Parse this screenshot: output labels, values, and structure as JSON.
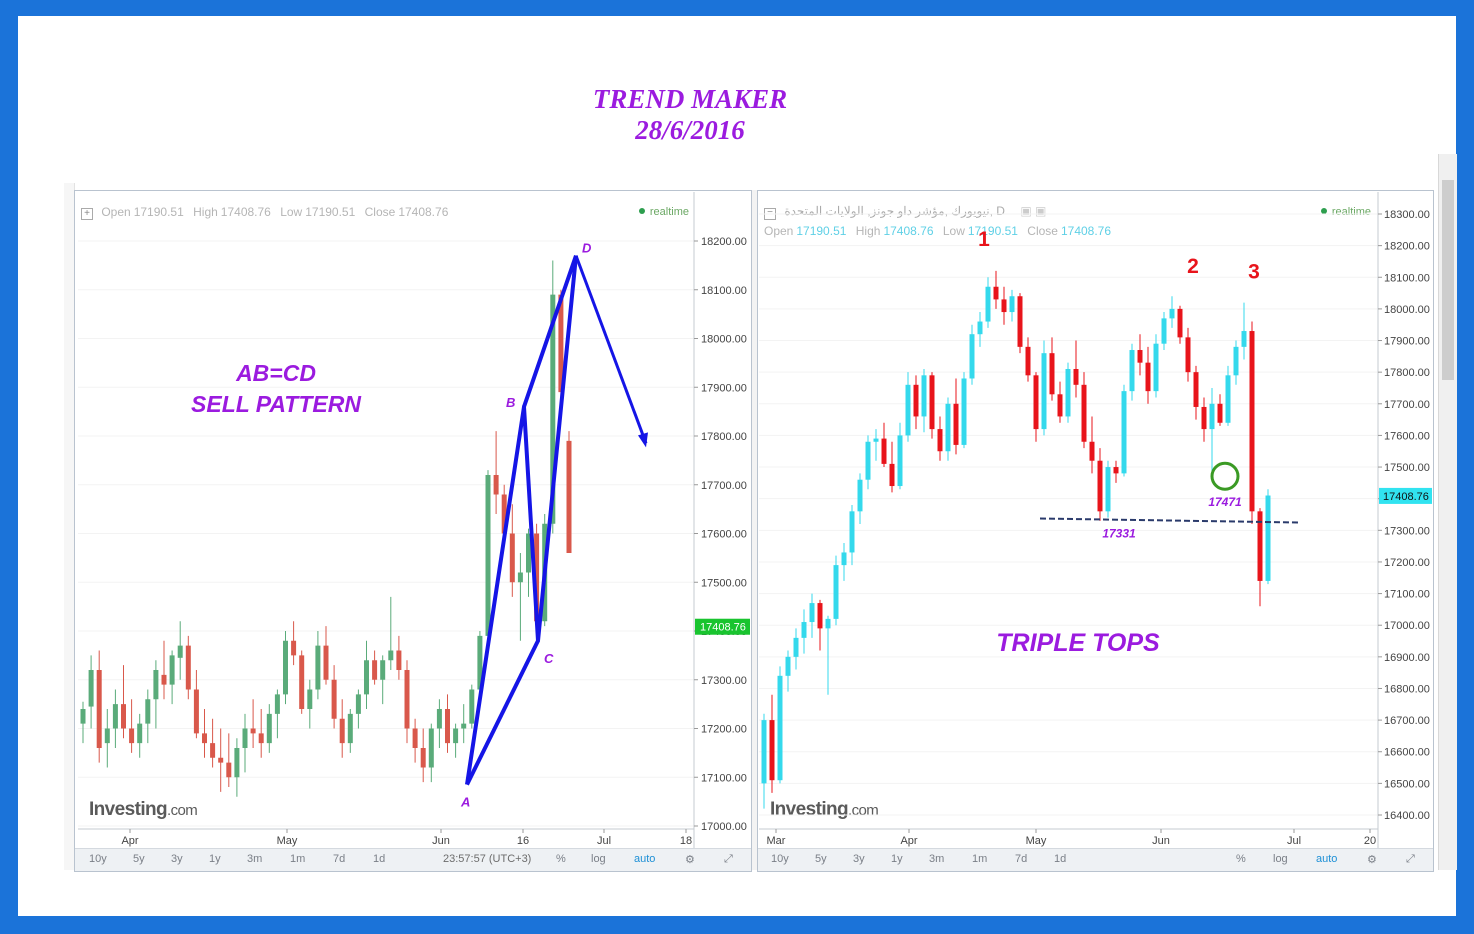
{
  "title_lines": [
    "TREND MAKER",
    "28/6/2016"
  ],
  "left_chart": {
    "header": {
      "open_label": "Open",
      "open": "17190.51",
      "high_label": "High",
      "high": "17408.76",
      "low_label": "Low",
      "low": "17190.51",
      "close_label": "Close",
      "close": "17408.76"
    },
    "realtime": "realtime",
    "price_tag": "17408.76",
    "annotation": [
      "AB=CD",
      "SELL PATTERN"
    ],
    "point_labels": {
      "A": "A",
      "B": "B",
      "C": "C",
      "D": "D"
    },
    "toolbar": [
      "10y",
      "5y",
      "3y",
      "1y",
      "3m",
      "1m",
      "7d",
      "1d"
    ],
    "time": "23:57:57 (UTC+3)",
    "toolbar_right": [
      "%",
      "log",
      "auto"
    ],
    "logo": "Investing",
    "logo_suffix": ".com"
  },
  "right_chart": {
    "header_title": "نيويورك ,مؤشر داو جونز, الولايات المتحدة, D",
    "header": {
      "open_label": "Open",
      "open": "17190.51",
      "high_label": "High",
      "high": "17408.76",
      "low_label": "Low",
      "low": "17190.51",
      "close_label": "Close",
      "close": "17408.76"
    },
    "realtime": "realtime",
    "price_tag": "17408.76",
    "annotation": "TRIPLE TOPS",
    "tops": [
      "1",
      "2",
      "3"
    ],
    "support_label": "17331",
    "circle_label": "17471",
    "toolbar": [
      "10y",
      "5y",
      "3y",
      "1y",
      "3m",
      "1m",
      "7d",
      "1d"
    ],
    "toolbar_right": [
      "%",
      "log",
      "auto"
    ],
    "logo": "Investing",
    "logo_suffix": ".com"
  },
  "chart_data": [
    {
      "type": "candlestick",
      "title": "",
      "ylim": [
        17000,
        18250
      ],
      "y_ticks": [
        18200,
        18100,
        18000,
        17900,
        17800,
        17700,
        17600,
        17500,
        17400,
        17300,
        17200,
        17100,
        17000
      ],
      "y_tick_labels": [
        "18200.00",
        "18100.00",
        "18000.00",
        "17900.00",
        "17800.00",
        "17700.00",
        "17600.00",
        "17500.00",
        "17400.00",
        "17300.00",
        "17200.00",
        "17100.00",
        "17000.00"
      ],
      "x_tick_labels": [
        "Apr",
        "May",
        "Jun",
        "16",
        "Jul",
        "18"
      ],
      "colors": {
        "up": "#5aab7a",
        "down": "#d9584b"
      },
      "pattern_points": {
        "A": 17085,
        "B": 17860,
        "C": 17380,
        "D": 18170
      },
      "projection_end": 17785,
      "bars": [
        [
          17210,
          17255,
          17170,
          17240
        ],
        [
          17245,
          17350,
          17200,
          17320
        ],
        [
          17320,
          17360,
          17130,
          17160
        ],
        [
          17170,
          17240,
          17120,
          17200
        ],
        [
          17200,
          17280,
          17160,
          17250
        ],
        [
          17250,
          17330,
          17180,
          17200
        ],
        [
          17200,
          17260,
          17150,
          17170
        ],
        [
          17170,
          17230,
          17140,
          17210
        ],
        [
          17210,
          17280,
          17170,
          17260
        ],
        [
          17260,
          17340,
          17200,
          17320
        ],
        [
          17310,
          17380,
          17260,
          17290
        ],
        [
          17290,
          17360,
          17250,
          17350
        ],
        [
          17345,
          17420,
          17300,
          17370
        ],
        [
          17370,
          17390,
          17260,
          17280
        ],
        [
          17280,
          17320,
          17180,
          17190
        ],
        [
          17190,
          17240,
          17140,
          17170
        ],
        [
          17170,
          17220,
          17120,
          17140
        ],
        [
          17140,
          17200,
          17070,
          17130
        ],
        [
          17130,
          17190,
          17080,
          17100
        ],
        [
          17100,
          17180,
          17060,
          17160
        ],
        [
          17160,
          17230,
          17110,
          17200
        ],
        [
          17200,
          17260,
          17160,
          17190
        ],
        [
          17190,
          17240,
          17140,
          17170
        ],
        [
          17170,
          17250,
          17150,
          17230
        ],
        [
          17230,
          17280,
          17180,
          17270
        ],
        [
          17270,
          17400,
          17250,
          17380
        ],
        [
          17380,
          17420,
          17330,
          17350
        ],
        [
          17350,
          17360,
          17230,
          17240
        ],
        [
          17240,
          17300,
          17200,
          17280
        ],
        [
          17280,
          17400,
          17260,
          17370
        ],
        [
          17370,
          17410,
          17290,
          17300
        ],
        [
          17300,
          17330,
          17200,
          17220
        ],
        [
          17220,
          17260,
          17140,
          17170
        ],
        [
          17170,
          17240,
          17150,
          17230
        ],
        [
          17230,
          17280,
          17200,
          17270
        ],
        [
          17270,
          17380,
          17240,
          17340
        ],
        [
          17340,
          17360,
          17290,
          17300
        ],
        [
          17300,
          17350,
          17250,
          17340
        ],
        [
          17340,
          17470,
          17320,
          17360
        ],
        [
          17360,
          17390,
          17300,
          17320
        ],
        [
          17320,
          17340,
          17170,
          17200
        ],
        [
          17200,
          17220,
          17130,
          17160
        ],
        [
          17160,
          17200,
          17090,
          17120
        ],
        [
          17120,
          17210,
          17090,
          17200
        ],
        [
          17200,
          17260,
          17160,
          17240
        ],
        [
          17240,
          17270,
          17150,
          17170
        ],
        [
          17170,
          17210,
          17140,
          17200
        ],
        [
          17200,
          17250,
          17170,
          17210
        ],
        [
          17210,
          17290,
          17200,
          17280
        ],
        [
          17280,
          17400,
          17270,
          17390
        ],
        [
          17390,
          17730,
          17380,
          17720
        ],
        [
          17720,
          17810,
          17640,
          17680
        ],
        [
          17680,
          17700,
          17590,
          17600
        ],
        [
          17600,
          17660,
          17470,
          17500
        ],
        [
          17500,
          17560,
          17380,
          17520
        ],
        [
          17520,
          17610,
          17470,
          17600
        ],
        [
          17600,
          17620,
          17400,
          17420
        ],
        [
          17420,
          17640,
          17410,
          17620
        ],
        [
          17620,
          18160,
          17600,
          18090
        ],
        [
          18090,
          18100,
          17860,
          17890
        ],
        [
          17790,
          17810,
          17560,
          17560
        ]
      ]
    },
    {
      "type": "candlestick",
      "title": "",
      "ylim": [
        16350,
        18350
      ],
      "y_ticks": [
        18300,
        18200,
        18100,
        18000,
        17900,
        17800,
        17700,
        17600,
        17500,
        17400,
        17300,
        17200,
        17100,
        17000,
        16900,
        16800,
        16700,
        16600,
        16500,
        16400
      ],
      "y_tick_labels": [
        "18300.00",
        "18200.00",
        "18100.00",
        "18000.00",
        "17900.00",
        "17800.00",
        "17700.00",
        "17600.00",
        "17500.00",
        "17400.00",
        "17300.00",
        "17200.00",
        "17100.00",
        "17000.00",
        "16900.00",
        "16800.00",
        "16700.00",
        "16600.00",
        "16500.00",
        "16400.00"
      ],
      "x_tick_labels": [
        "Mar",
        "Apr",
        "May",
        "Jun",
        "Jul",
        "20"
      ],
      "colors": {
        "up": "#34d9ec",
        "down": "#e8141b"
      },
      "support_level": 17331,
      "tops": [
        18120,
        18050,
        18020
      ],
      "bars": [
        [
          16500,
          16720,
          16420,
          16700
        ],
        [
          16700,
          16780,
          16470,
          16510
        ],
        [
          16510,
          16870,
          16500,
          16840
        ],
        [
          16840,
          16920,
          16790,
          16900
        ],
        [
          16900,
          16990,
          16860,
          16960
        ],
        [
          16960,
          17050,
          16910,
          17010
        ],
        [
          17010,
          17100,
          16960,
          17070
        ],
        [
          17070,
          17080,
          16920,
          16990
        ],
        [
          16990,
          17030,
          16780,
          17020
        ],
        [
          17020,
          17220,
          17000,
          17190
        ],
        [
          17190,
          17260,
          17140,
          17230
        ],
        [
          17230,
          17380,
          17190,
          17360
        ],
        [
          17360,
          17480,
          17320,
          17460
        ],
        [
          17460,
          17600,
          17430,
          17580
        ],
        [
          17580,
          17620,
          17520,
          17590
        ],
        [
          17590,
          17640,
          17500,
          17510
        ],
        [
          17510,
          17580,
          17420,
          17440
        ],
        [
          17440,
          17640,
          17430,
          17600
        ],
        [
          17600,
          17800,
          17580,
          17760
        ],
        [
          17760,
          17790,
          17620,
          17660
        ],
        [
          17660,
          17810,
          17610,
          17790
        ],
        [
          17790,
          17800,
          17590,
          17620
        ],
        [
          17620,
          17660,
          17520,
          17550
        ],
        [
          17550,
          17720,
          17520,
          17700
        ],
        [
          17700,
          17780,
          17540,
          17570
        ],
        [
          17570,
          17800,
          17560,
          17780
        ],
        [
          17780,
          17950,
          17760,
          17920
        ],
        [
          17920,
          17990,
          17880,
          17960
        ],
        [
          17960,
          18100,
          17940,
          18070
        ],
        [
          18070,
          18120,
          18000,
          18030
        ],
        [
          18030,
          18070,
          17950,
          17990
        ],
        [
          17990,
          18060,
          17960,
          18040
        ],
        [
          18040,
          18050,
          17860,
          17880
        ],
        [
          17880,
          17910,
          17770,
          17790
        ],
        [
          17790,
          17800,
          17580,
          17620
        ],
        [
          17620,
          17900,
          17600,
          17860
        ],
        [
          17860,
          17910,
          17710,
          17730
        ],
        [
          17730,
          17770,
          17640,
          17660
        ],
        [
          17660,
          17830,
          17640,
          17810
        ],
        [
          17810,
          17900,
          17720,
          17760
        ],
        [
          17760,
          17800,
          17560,
          17580
        ],
        [
          17580,
          17660,
          17480,
          17520
        ],
        [
          17520,
          17560,
          17330,
          17360
        ],
        [
          17360,
          17520,
          17340,
          17500
        ],
        [
          17500,
          17520,
          17450,
          17480
        ],
        [
          17480,
          17760,
          17470,
          17740
        ],
        [
          17740,
          17890,
          17710,
          17870
        ],
        [
          17870,
          17920,
          17790,
          17830
        ],
        [
          17830,
          17880,
          17700,
          17740
        ],
        [
          17740,
          17920,
          17720,
          17890
        ],
        [
          17890,
          17990,
          17870,
          17970
        ],
        [
          17970,
          18040,
          17940,
          18000
        ],
        [
          18000,
          18010,
          17890,
          17910
        ],
        [
          17910,
          17940,
          17770,
          17800
        ],
        [
          17800,
          17820,
          17650,
          17690
        ],
        [
          17690,
          17720,
          17580,
          17620
        ],
        [
          17620,
          17750,
          17480,
          17700
        ],
        [
          17700,
          17730,
          17630,
          17640
        ],
        [
          17640,
          17820,
          17630,
          17790
        ],
        [
          17790,
          17900,
          17760,
          17880
        ],
        [
          17880,
          18020,
          17840,
          17930
        ],
        [
          17930,
          17960,
          17320,
          17360
        ],
        [
          17360,
          17370,
          17060,
          17140
        ],
        [
          17140,
          17430,
          17130,
          17410
        ]
      ]
    }
  ]
}
